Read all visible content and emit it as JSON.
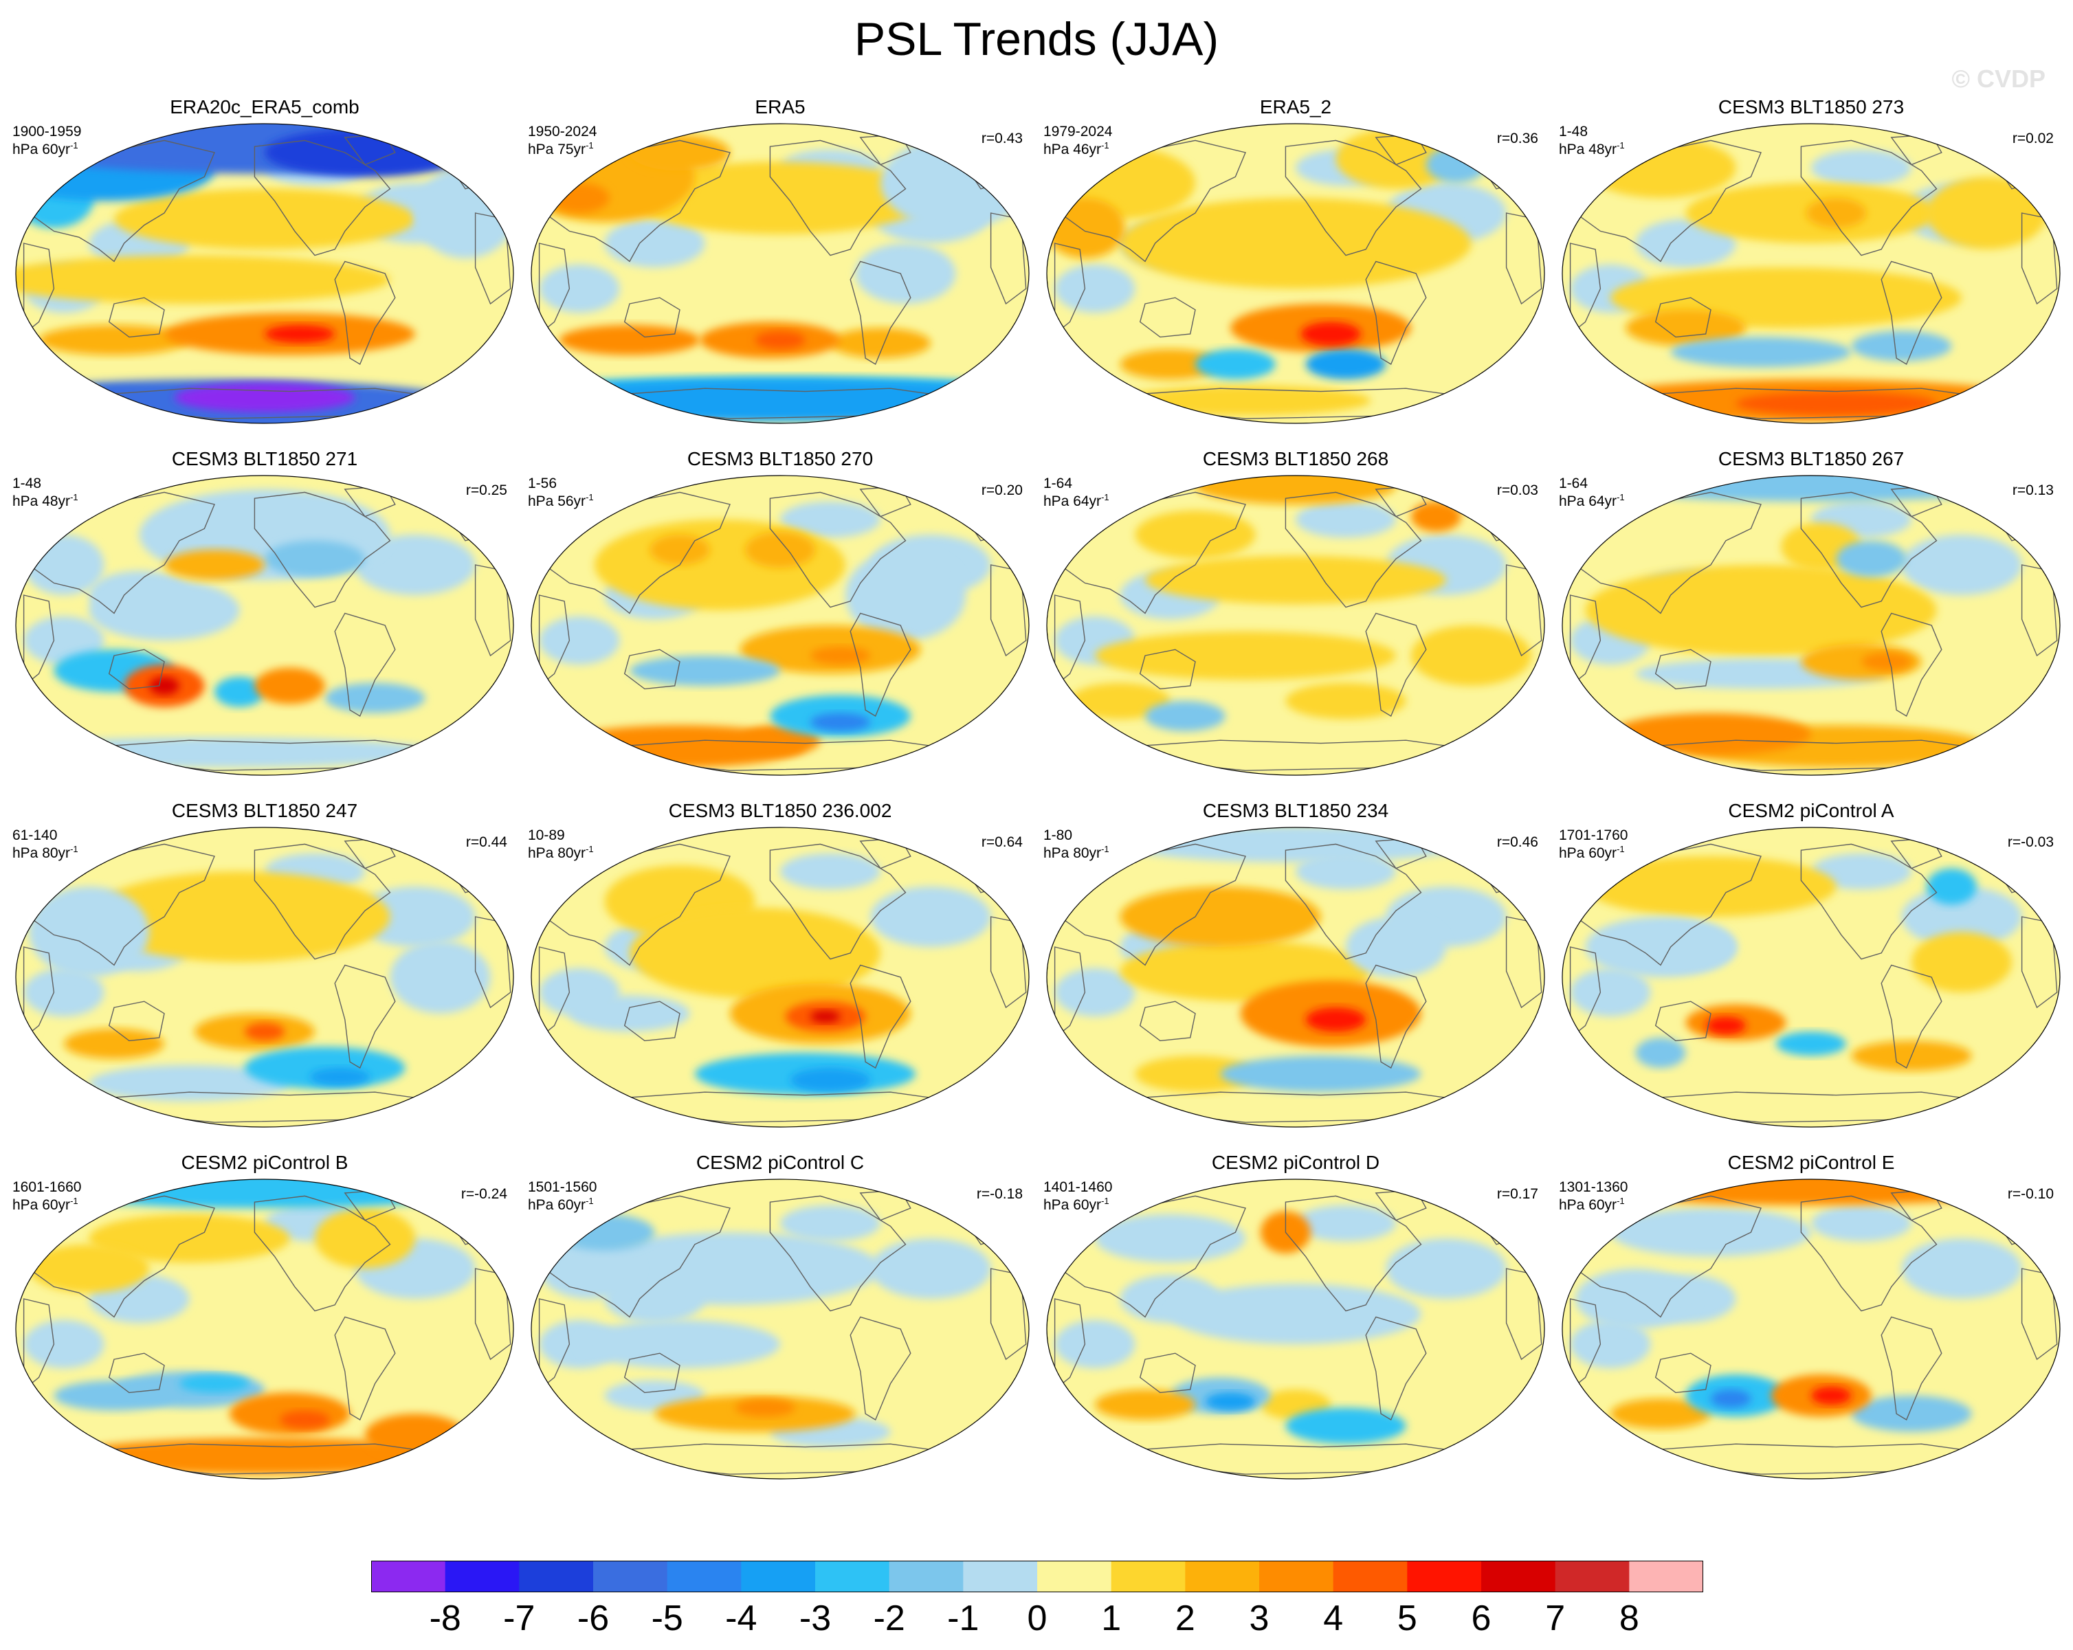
{
  "title": "PSL Trends (JJA)",
  "watermark": "© CVDP",
  "colorbar": {
    "labels": [
      "-8",
      "-7",
      "-6",
      "-5",
      "-4",
      "-3",
      "-2",
      "-1",
      "0",
      "1",
      "2",
      "3",
      "4",
      "5",
      "6",
      "7",
      "8"
    ],
    "colors": [
      "#8c29f0",
      "#2a17f5",
      "#1c3fdb",
      "#3a6ee0",
      "#2a84f0",
      "#16a0f4",
      "#2ec2f5",
      "#7cc6ec",
      "#b4dcf0",
      "#fcf69c",
      "#fdd62e",
      "#fdb10a",
      "#fe8c00",
      "#fe5a00",
      "#ff1400",
      "#d80000",
      "#d02828",
      "#fdb4b4"
    ]
  },
  "colors": {
    "land_outline": "#606060",
    "map_border": "#000000"
  },
  "panels": [
    {
      "title": "ERA20c_ERA5_comb",
      "years": "1900-1959",
      "units": "hPa 60yr",
      "corr": ""
    },
    {
      "title": "ERA5",
      "years": "1950-2024",
      "units": "hPa 75yr",
      "corr": "r=0.43"
    },
    {
      "title": "ERA5_2",
      "years": "1979-2024",
      "units": "hPa 46yr",
      "corr": "r=0.36"
    },
    {
      "title": "CESM3 BLT1850 273",
      "years": "1-48",
      "units": "hPa 48yr",
      "corr": "r=0.02"
    },
    {
      "title": "CESM3 BLT1850 271",
      "years": "1-48",
      "units": "hPa 48yr",
      "corr": "r=0.25"
    },
    {
      "title": "CESM3 BLT1850 270",
      "years": "1-56",
      "units": "hPa 56yr",
      "corr": "r=0.20"
    },
    {
      "title": "CESM3 BLT1850 268",
      "years": "1-64",
      "units": "hPa 64yr",
      "corr": "r=0.03"
    },
    {
      "title": "CESM3 BLT1850 267",
      "years": "1-64",
      "units": "hPa 64yr",
      "corr": "r=0.13"
    },
    {
      "title": "CESM3 BLT1850 247",
      "years": "61-140",
      "units": "hPa 80yr",
      "corr": "r=0.44"
    },
    {
      "title": "CESM3 BLT1850 236.002",
      "years": "10-89",
      "units": "hPa 80yr",
      "corr": "r=0.64"
    },
    {
      "title": "CESM3 BLT1850 234",
      "years": "1-80",
      "units": "hPa 80yr",
      "corr": "r=0.46"
    },
    {
      "title": "CESM2 piControl A",
      "years": "1701-1760",
      "units": "hPa 60yr",
      "corr": "r=-0.03"
    },
    {
      "title": "CESM2 piControl B",
      "years": "1601-1660",
      "units": "hPa 60yr",
      "corr": "r=-0.24"
    },
    {
      "title": "CESM2 piControl C",
      "years": "1501-1560",
      "units": "hPa 60yr",
      "corr": "r=-0.18"
    },
    {
      "title": "CESM2 piControl D",
      "years": "1401-1460",
      "units": "hPa 60yr",
      "corr": "r=0.17"
    },
    {
      "title": "CESM2 piControl E",
      "years": "1301-1360",
      "units": "hPa 60yr",
      "corr": "r=-0.10"
    }
  ]
}
